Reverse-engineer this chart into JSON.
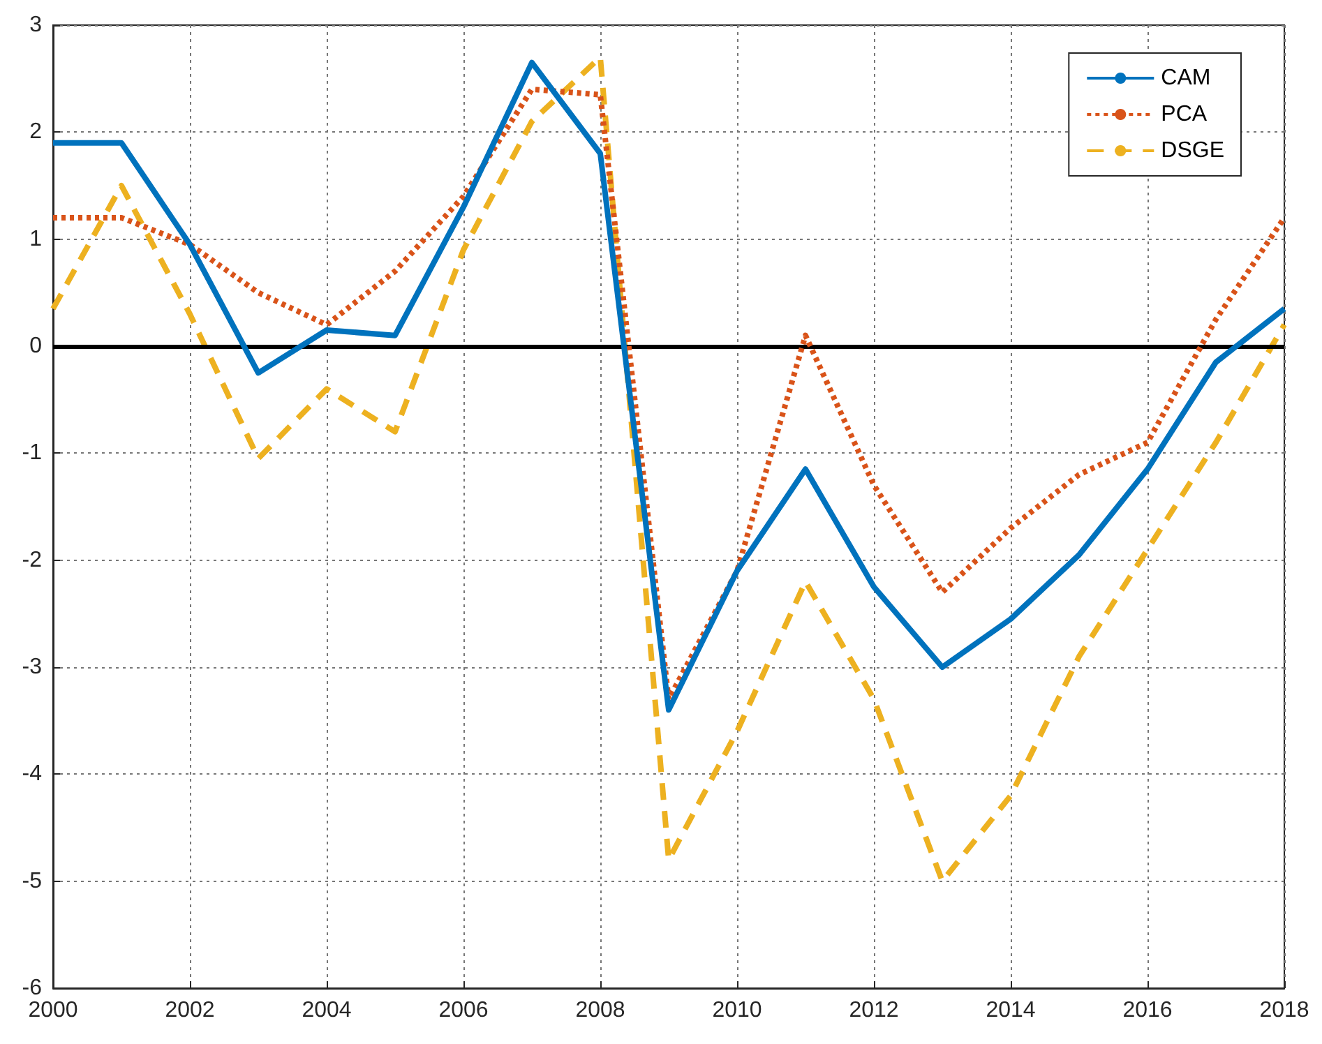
{
  "chart_data": {
    "type": "line",
    "x": [
      2000,
      2001,
      2002,
      2003,
      2004,
      2005,
      2006,
      2007,
      2008,
      2009,
      2010,
      2011,
      2012,
      2013,
      2014,
      2015,
      2016,
      2017,
      2018
    ],
    "series": [
      {
        "name": "CAM",
        "color": "#0072bd",
        "line_style": "solid",
        "values": [
          1.9,
          1.9,
          0.95,
          -0.25,
          0.15,
          0.1,
          1.3,
          2.65,
          1.8,
          -3.4,
          -2.1,
          -1.15,
          -2.25,
          -3.0,
          -2.55,
          -1.95,
          -1.15,
          -0.15,
          0.35
        ]
      },
      {
        "name": "PCA",
        "color": "#d95319",
        "line_style": "dotted",
        "values": [
          1.2,
          1.2,
          0.95,
          0.5,
          0.2,
          0.7,
          1.4,
          2.4,
          2.35,
          -3.3,
          -2.1,
          0.1,
          -1.3,
          -2.3,
          -1.7,
          -1.2,
          -0.9,
          0.25,
          1.2
        ]
      },
      {
        "name": "DSGE",
        "color": "#edb120",
        "line_style": "dashed",
        "values": [
          0.35,
          1.5,
          0.3,
          -1.05,
          -0.4,
          -0.8,
          0.9,
          2.1,
          2.7,
          -4.8,
          -3.6,
          -2.2,
          -3.3,
          -5.0,
          -4.2,
          -2.9,
          -1.9,
          -0.9,
          0.2
        ]
      }
    ],
    "xlim": [
      2000,
      2018
    ],
    "xticks": [
      2000,
      2002,
      2004,
      2006,
      2008,
      2010,
      2012,
      2014,
      2016,
      2018
    ],
    "ylim": [
      -6,
      3
    ],
    "yticks": [
      -6,
      -5,
      -4,
      -3,
      -2,
      -1,
      0,
      1,
      2,
      3
    ],
    "ref_lines": [
      {
        "axis": "y",
        "value": 0,
        "color": "#000000",
        "line_style": "solid"
      }
    ],
    "grid": true,
    "legend": "top right",
    "marker": "none"
  }
}
